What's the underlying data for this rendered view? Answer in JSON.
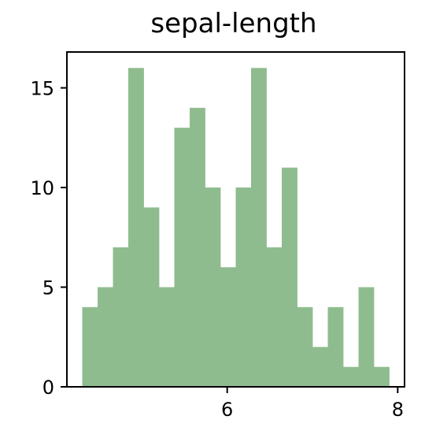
{
  "chart_data": {
    "type": "bar",
    "title": "sepal-length",
    "xlabel": "",
    "ylabel": "",
    "bin_edges": [
      4.3,
      4.48,
      4.66,
      4.84,
      5.02,
      5.2,
      5.38,
      5.56,
      5.74,
      5.92,
      6.1,
      6.28,
      6.46,
      6.64,
      6.82,
      7.0,
      7.18,
      7.36,
      7.54,
      7.72,
      7.9
    ],
    "values": [
      4,
      5,
      7,
      16,
      9,
      5,
      13,
      14,
      10,
      6,
      10,
      16,
      7,
      11,
      4,
      2,
      4,
      1,
      5,
      1
    ],
    "xlim": [
      4.12,
      8.08
    ],
    "ylim": [
      0,
      16.8
    ],
    "x_ticks": [
      {
        "value": 6,
        "label": "6"
      },
      {
        "value": 8,
        "label": "8"
      }
    ],
    "y_ticks": [
      {
        "value": 0,
        "label": "0"
      },
      {
        "value": 5,
        "label": "5"
      },
      {
        "value": 10,
        "label": "10"
      },
      {
        "value": 15,
        "label": "15"
      }
    ],
    "bar_color": "#8fbc8f",
    "grid": false,
    "legend": "none"
  }
}
